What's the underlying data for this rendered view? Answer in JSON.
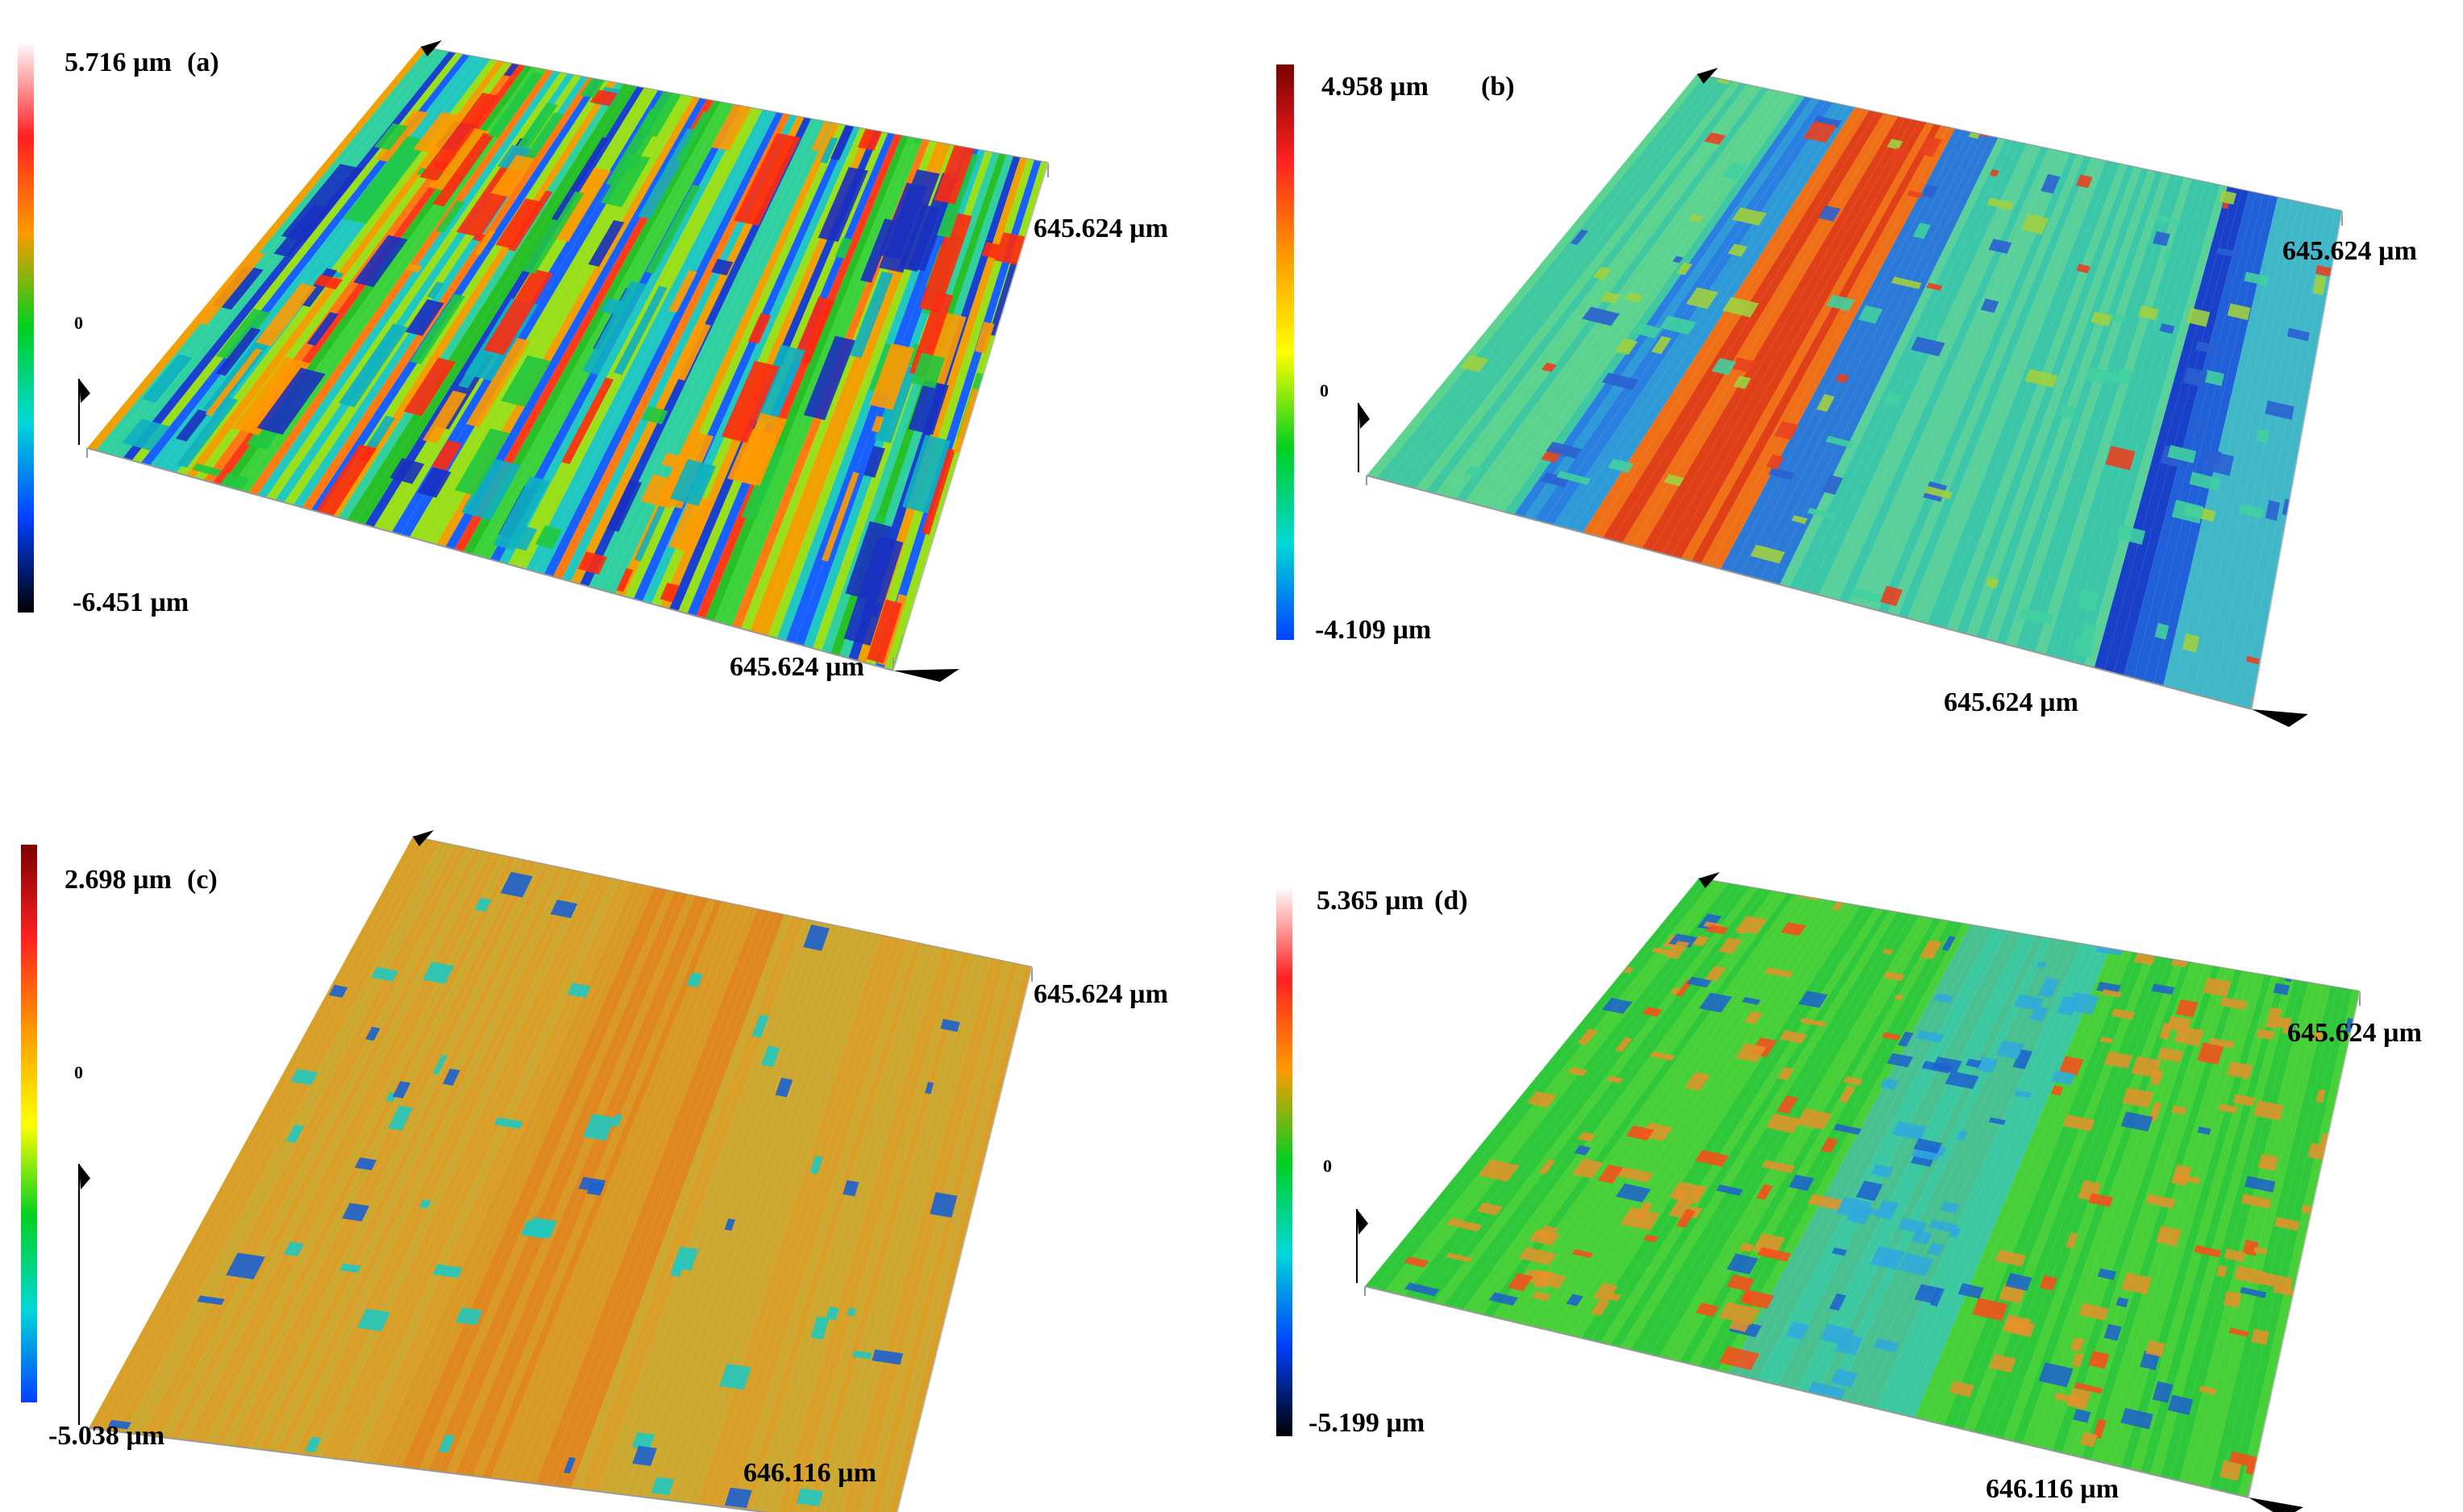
{
  "panels": [
    {
      "id": "a",
      "letter": "(a)",
      "max_label": "5.716 µm",
      "min_label": "-6.451 µm",
      "zero_label": "0",
      "x_extent_label": "645.624 µm",
      "y_extent_label": "645.624 µm",
      "colormap": [
        "#ffffff",
        "#ff2020",
        "#ff9a00",
        "#00d020",
        "#00d8d8",
        "#0040ff",
        "#000000"
      ],
      "pattern": "striped"
    },
    {
      "id": "b",
      "letter": "(b)",
      "max_label": "4.958 µm",
      "min_label": "-4.109 µm",
      "zero_label": "0",
      "x_extent_label": "645.624 µm",
      "y_extent_label": "645.624 µm",
      "colormap": [
        "#7a0000",
        "#ff2020",
        "#ff9a00",
        "#ffff00",
        "#00d020",
        "#00d8d8",
        "#0040ff"
      ],
      "pattern": "broad-bands"
    },
    {
      "id": "c",
      "letter": "(c)",
      "max_label": "2.698 µm",
      "min_label": "-5.038 µm",
      "zero_label": "0",
      "x_extent_label": "646.116 µm",
      "y_extent_label": "645.624 µm",
      "colormap": [
        "#7a0000",
        "#ff2020",
        "#ff9a00",
        "#ffff00",
        "#00d020",
        "#00d8d8",
        "#0040ff"
      ],
      "pattern": "flat-pits"
    },
    {
      "id": "d",
      "letter": "(d)",
      "max_label": "5.365 µm",
      "min_label": "-5.199 µm",
      "zero_label": "0",
      "x_extent_label": "646.116 µm",
      "y_extent_label": "645.624 µm",
      "colormap": [
        "#ffffff",
        "#ff2020",
        "#ff9a00",
        "#00d020",
        "#00d8d8",
        "#0040ff",
        "#000000"
      ],
      "pattern": "mottled"
    }
  ]
}
